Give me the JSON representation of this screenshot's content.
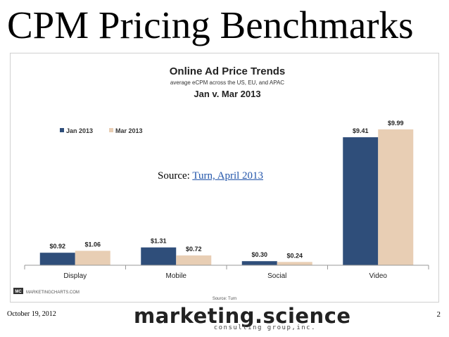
{
  "slide": {
    "title": "CPM Pricing Benchmarks",
    "source_prefix": "Source:",
    "source_link": "Turn, April 2013",
    "date": "October 19, 2012",
    "page_number": "2",
    "brand_name": "marketing.science",
    "brand_sub": "consulting group,inc."
  },
  "chart_data": {
    "type": "bar",
    "title": "Online Ad Price Trends",
    "subtitle": "average eCPM across the US, EU, and APAC",
    "subtitle2": "Jan v. Mar 2013",
    "categories": [
      "Display",
      "Mobile",
      "Social",
      "Video"
    ],
    "series": [
      {
        "name": "Jan 2013",
        "color": "#2f4e7a",
        "values": [
          0.92,
          1.31,
          0.3,
          9.41
        ],
        "labels": [
          "$0.92",
          "$1.31",
          "$0.30",
          "$9.41"
        ]
      },
      {
        "name": "Mar 2013",
        "color": "#e8ceb4",
        "values": [
          1.06,
          0.72,
          0.24,
          9.99
        ],
        "labels": [
          "$1.06",
          "$0.72",
          "$0.24",
          "$9.99"
        ]
      }
    ],
    "ylim": [
      0,
      10.5
    ],
    "legend_position": "top-left",
    "grid": false,
    "source_note": "Source: Turn",
    "logo_mark": "MC",
    "logo_text": "MARKETINGCHARTS.COM"
  }
}
